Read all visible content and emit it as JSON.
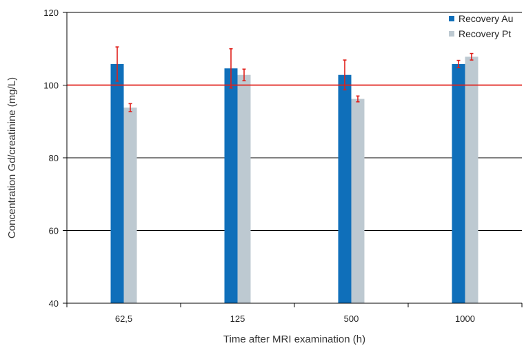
{
  "chart_data": {
    "type": "bar",
    "xlabel": "Time after MRI examination (h)",
    "ylabel": "Concentration Gd/creatinine (mg/L)",
    "categories": [
      "62,5",
      "125",
      "500",
      "1000"
    ],
    "ylim": [
      40,
      120
    ],
    "yticks": [
      40,
      60,
      80,
      100,
      120
    ],
    "reference_line": {
      "value": 100,
      "color": "#e0201b"
    },
    "series": [
      {
        "name": "Recovery Au",
        "color": "#0f6fba",
        "values": [
          105.8,
          104.6,
          102.8,
          105.8
        ],
        "errors": [
          4.7,
          5.4,
          4.1,
          1.0
        ]
      },
      {
        "name": "Recovery Pt",
        "color": "#bdc9d1",
        "values": [
          93.8,
          102.8,
          96.2,
          107.8
        ],
        "errors": [
          1.1,
          1.6,
          0.8,
          0.9
        ]
      }
    ],
    "error_bar_color": "#e0201b",
    "grid": true,
    "legend_position": "top-right"
  }
}
